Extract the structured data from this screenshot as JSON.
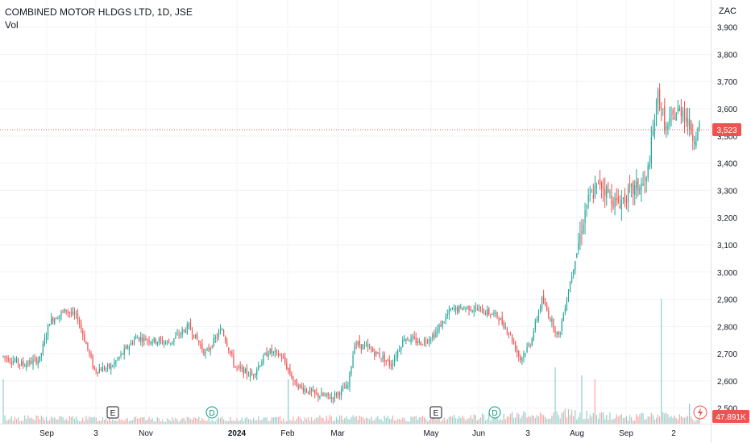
{
  "header": {
    "title": "COMBINED MOTOR HLDGS LTD, 1D, JSE",
    "volume_label": "Vol",
    "currency": "ZAC"
  },
  "chart_data": {
    "type": "candlestick",
    "title": "COMBINED MOTOR HLDGS LTD, 1D, JSE",
    "ylim": [
      2440,
      3970
    ],
    "y_ticks": [
      2500,
      2600,
      2700,
      2800,
      2900,
      3000,
      3100,
      3200,
      3300,
      3400,
      3500,
      3600,
      3700,
      3800,
      3900
    ],
    "y_tick_labels": [
      "2,500",
      "2,600",
      "2,700",
      "2,800",
      "2,900",
      "3,000",
      "3,100",
      "3,200",
      "3,300",
      "3,400",
      "3,500",
      "3,600",
      "3,700",
      "3,800",
      "3,900"
    ],
    "x_tick_labels": [
      "Sep",
      "3",
      "Nov",
      "2024",
      "Feb",
      "Mar",
      "May",
      "Jun",
      "3",
      "Aug",
      "Sep",
      "2"
    ],
    "last_price": 3523,
    "last_price_label": "3,523",
    "volume_label": "47.891K",
    "event_markers": [
      "E",
      "D",
      "E",
      "D"
    ],
    "up_color": "#26a69a",
    "down_color": "#ef5350",
    "grid": true,
    "anchors": [
      [
        0,
        2690
      ],
      [
        12,
        2660
      ],
      [
        22,
        2680
      ],
      [
        28,
        2820
      ],
      [
        38,
        2860
      ],
      [
        45,
        2830
      ],
      [
        55,
        2640
      ],
      [
        65,
        2650
      ],
      [
        80,
        2760
      ],
      [
        90,
        2750
      ],
      [
        100,
        2740
      ],
      [
        112,
        2800
      ],
      [
        122,
        2700
      ],
      [
        132,
        2790
      ],
      [
        140,
        2650
      ],
      [
        150,
        2620
      ],
      [
        160,
        2710
      ],
      [
        168,
        2690
      ],
      [
        176,
        2590
      ],
      [
        188,
        2550
      ],
      [
        198,
        2540
      ],
      [
        208,
        2580
      ],
      [
        212,
        2740
      ],
      [
        220,
        2720
      ],
      [
        228,
        2690
      ],
      [
        234,
        2660
      ],
      [
        242,
        2760
      ],
      [
        252,
        2740
      ],
      [
        260,
        2770
      ],
      [
        270,
        2860
      ],
      [
        280,
        2870
      ],
      [
        288,
        2860
      ],
      [
        298,
        2840
      ],
      [
        305,
        2780
      ],
      [
        312,
        2680
      ],
      [
        318,
        2740
      ],
      [
        325,
        2900
      ],
      [
        335,
        2760
      ],
      [
        345,
        3050
      ],
      [
        352,
        3250
      ],
      [
        360,
        3330
      ],
      [
        370,
        3250
      ],
      [
        380,
        3300
      ],
      [
        388,
        3330
      ],
      [
        395,
        3650
      ],
      [
        400,
        3520
      ],
      [
        405,
        3580
      ],
      [
        410,
        3600
      ],
      [
        416,
        3500
      ],
      [
        420,
        3523
      ]
    ],
    "volume_anchors": [
      [
        0,
        7
      ],
      [
        60,
        6
      ],
      [
        100,
        5
      ],
      [
        160,
        6
      ],
      [
        200,
        7
      ],
      [
        250,
        6
      ],
      [
        300,
        9
      ],
      [
        340,
        12
      ],
      [
        380,
        8
      ],
      [
        400,
        10
      ],
      [
        420,
        5
      ]
    ],
    "volume_spikes": [
      [
        0,
        55
      ],
      [
        172,
        55
      ],
      [
        333,
        70
      ],
      [
        349,
        60
      ],
      [
        357,
        55
      ],
      [
        397,
        155
      ],
      [
        414,
        25
      ]
    ]
  }
}
